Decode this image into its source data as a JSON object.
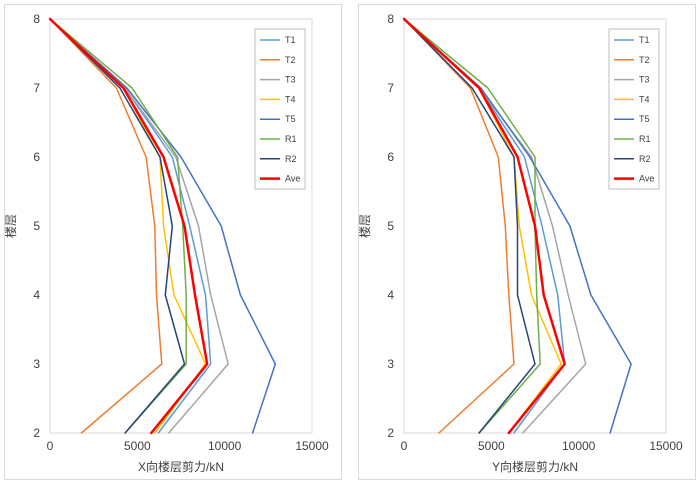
{
  "chart_data": [
    {
      "type": "line",
      "xlabel": "X向楼层剪力/kN",
      "ylabel": "楼层",
      "xlim": [
        0,
        15000
      ],
      "ylim": [
        2,
        8
      ],
      "xticks": [
        0,
        5000,
        10000,
        15000
      ],
      "yticks": [
        2,
        3,
        4,
        5,
        6,
        7,
        8
      ],
      "floors": [
        2,
        3,
        4,
        5,
        6,
        7,
        8
      ],
      "legend_position": "top-right",
      "series": [
        {
          "name": "T1",
          "color": "#5b9bd5",
          "width": 1.5,
          "values": [
            6200,
            9200,
            8900,
            8000,
            7000,
            4300,
            0
          ]
        },
        {
          "name": "T2",
          "color": "#ed7d31",
          "width": 1.5,
          "values": [
            1800,
            6400,
            6100,
            6000,
            5500,
            3800,
            0
          ]
        },
        {
          "name": "T3",
          "color": "#a5a5a5",
          "width": 1.5,
          "values": [
            6800,
            10200,
            9200,
            8500,
            7200,
            4300,
            0
          ]
        },
        {
          "name": "T4",
          "color": "#ffc000",
          "width": 1.5,
          "values": [
            6000,
            8900,
            7100,
            6500,
            6300,
            4200,
            0
          ]
        },
        {
          "name": "T5",
          "color": "#4472c4",
          "width": 1.5,
          "values": [
            11600,
            12900,
            10900,
            9800,
            7500,
            4400,
            0
          ]
        },
        {
          "name": "R1",
          "color": "#70ad47",
          "width": 1.5,
          "values": [
            4300,
            7800,
            7800,
            7600,
            7300,
            4700,
            0
          ]
        },
        {
          "name": "R2",
          "color": "#264478",
          "width": 1.5,
          "values": [
            4300,
            7700,
            6600,
            7000,
            6300,
            4000,
            0
          ]
        },
        {
          "name": "Ave",
          "color": "#ff0000",
          "width": 2.5,
          "values": [
            5800,
            9000,
            8300,
            7700,
            6500,
            4200,
            0
          ]
        }
      ]
    },
    {
      "type": "line",
      "xlabel": "Y向楼层剪力/kN",
      "ylabel": "楼层",
      "xlim": [
        0,
        15000
      ],
      "ylim": [
        2,
        8
      ],
      "xticks": [
        0,
        5000,
        10000,
        15000
      ],
      "yticks": [
        2,
        3,
        4,
        5,
        6,
        7,
        8
      ],
      "floors": [
        2,
        3,
        4,
        5,
        6,
        7,
        8
      ],
      "legend_position": "top-right",
      "series": [
        {
          "name": "T1",
          "color": "#5b9bd5",
          "width": 1.5,
          "values": [
            6300,
            9200,
            8800,
            7900,
            6900,
            4300,
            0
          ]
        },
        {
          "name": "T2",
          "color": "#ed7d31",
          "width": 1.5,
          "values": [
            2000,
            6300,
            6000,
            5800,
            5400,
            3800,
            0
          ]
        },
        {
          "name": "T3",
          "color": "#a5a5a5",
          "width": 1.5,
          "values": [
            6800,
            10400,
            9400,
            8500,
            7300,
            4300,
            0
          ]
        },
        {
          "name": "T4",
          "color": "#ffc000",
          "width": 1.5,
          "values": [
            6000,
            9000,
            7300,
            6600,
            6300,
            4300,
            0
          ]
        },
        {
          "name": "T5",
          "color": "#4472c4",
          "width": 1.5,
          "values": [
            11800,
            13000,
            10700,
            9500,
            7200,
            4400,
            0
          ]
        },
        {
          "name": "R1",
          "color": "#70ad47",
          "width": 1.5,
          "values": [
            4300,
            7800,
            7600,
            7500,
            7500,
            4800,
            0
          ]
        },
        {
          "name": "R2",
          "color": "#264478",
          "width": 1.5,
          "values": [
            4300,
            7500,
            6500,
            6500,
            6300,
            3900,
            0
          ]
        },
        {
          "name": "Ave",
          "color": "#ff0000",
          "width": 2.5,
          "values": [
            6000,
            9200,
            8000,
            7500,
            6500,
            4300,
            0
          ]
        }
      ]
    }
  ]
}
